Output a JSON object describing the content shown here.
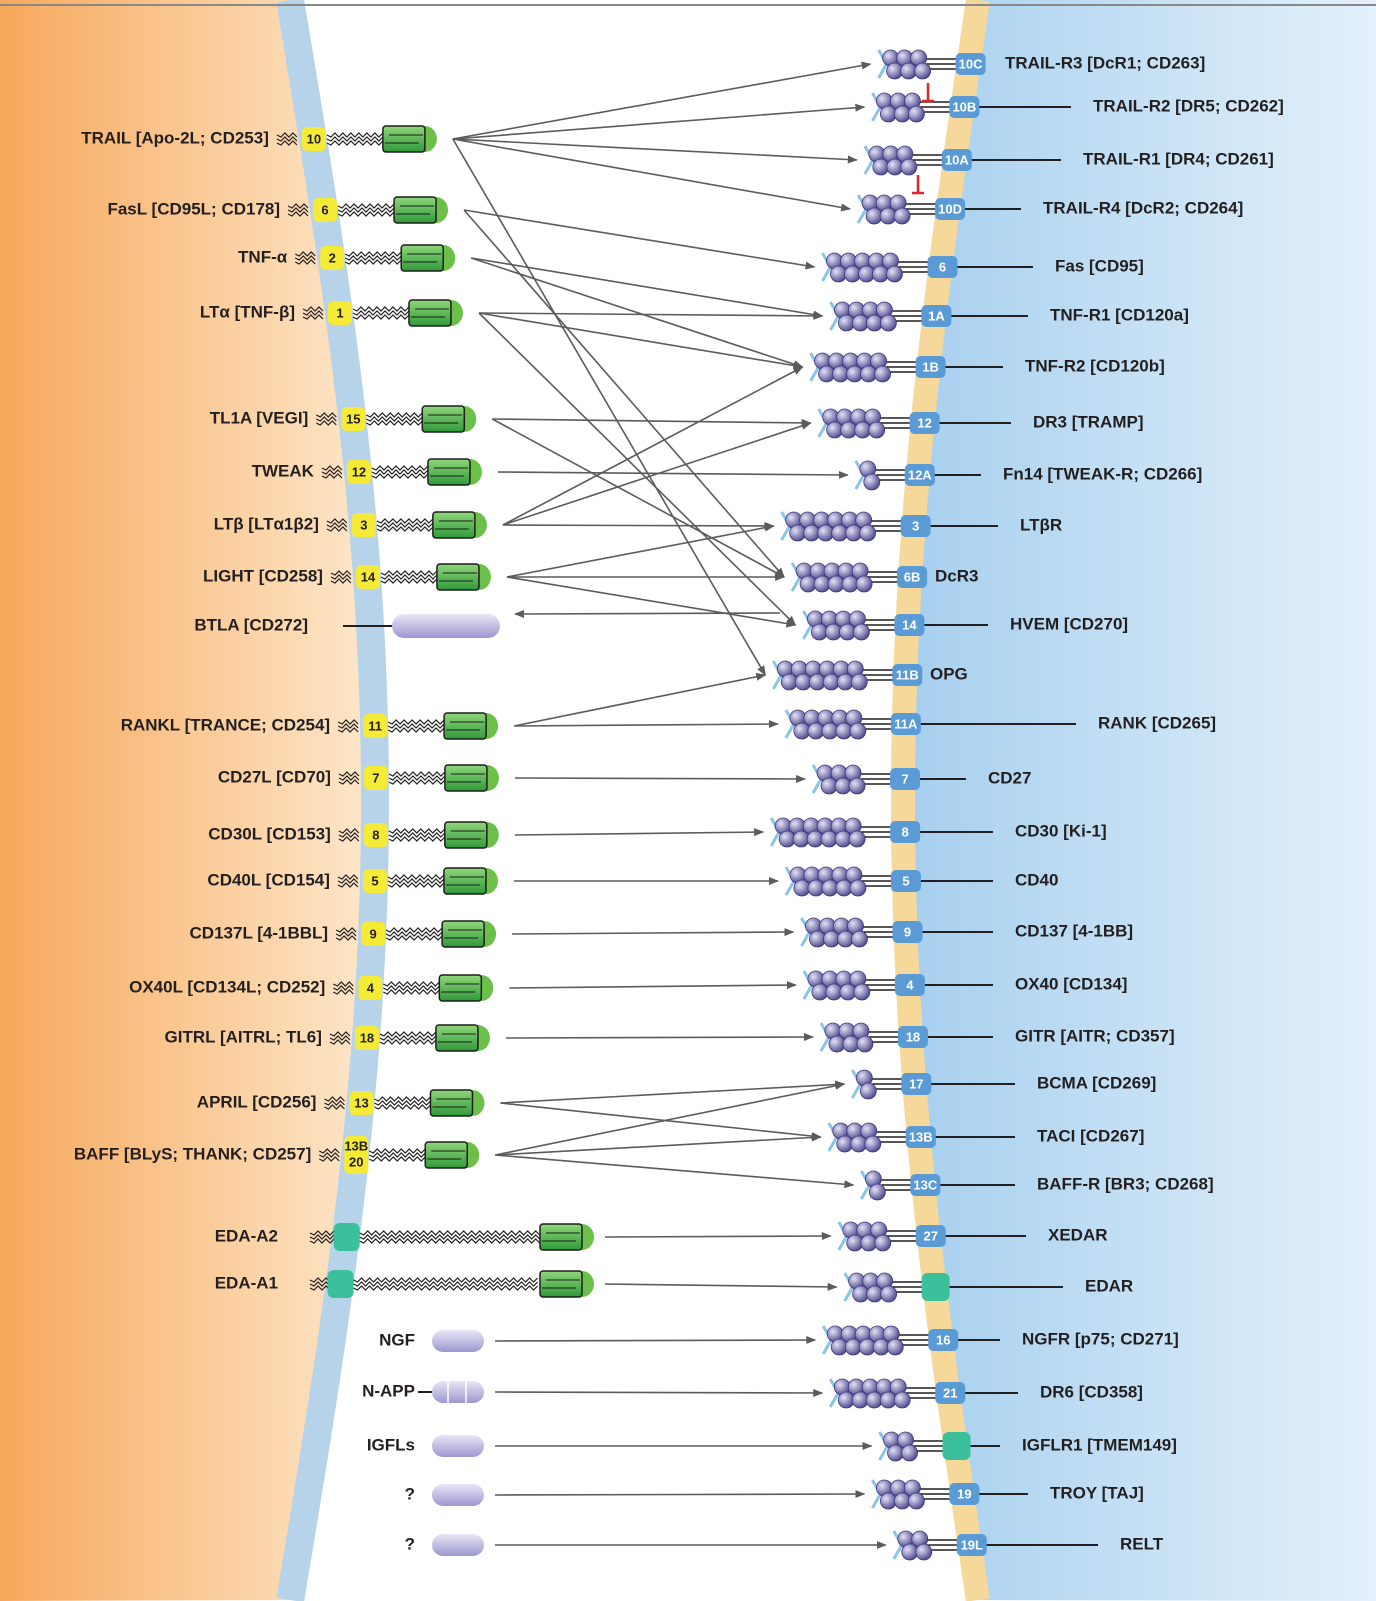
{
  "ligands": [
    {
      "label": "TRAIL [Apo-2L; CD253]",
      "ids": [
        "10"
      ]
    },
    {
      "label": "FasL [CD95L; CD178]",
      "ids": [
        "6"
      ]
    },
    {
      "label": "TNF-α",
      "ids": [
        "2"
      ]
    },
    {
      "label": "LTα [TNF-β]",
      "ids": [
        "1"
      ]
    },
    {
      "label": "TL1A [VEGI]",
      "ids": [
        "15"
      ]
    },
    {
      "label": "TWEAK",
      "ids": [
        "12"
      ]
    },
    {
      "label": "LTβ [LTα1β2]",
      "ids": [
        "3"
      ]
    },
    {
      "label": "LIGHT [CD258]",
      "ids": [
        "14"
      ]
    },
    {
      "label": "BTLA [CD272]",
      "ids": []
    },
    {
      "label": "RANKL [TRANCE; CD254]",
      "ids": [
        "11"
      ]
    },
    {
      "label": "CD27L [CD70]",
      "ids": [
        "7"
      ]
    },
    {
      "label": "CD30L [CD153]",
      "ids": [
        "8"
      ]
    },
    {
      "label": "CD40L [CD154]",
      "ids": [
        "5"
      ]
    },
    {
      "label": "CD137L [4-1BBL]",
      "ids": [
        "9"
      ]
    },
    {
      "label": "OX40L [CD134L; CD252]",
      "ids": [
        "4"
      ]
    },
    {
      "label": "GITRL [AITRL; TL6]",
      "ids": [
        "18"
      ]
    },
    {
      "label": "APRIL [CD256]",
      "ids": [
        "13"
      ]
    },
    {
      "label": "BAFF [BLyS; THANK; CD257]",
      "ids": [
        "13B",
        "20"
      ]
    },
    {
      "label": "EDA-A2",
      "ids": []
    },
    {
      "label": "EDA-A1",
      "ids": []
    },
    {
      "label": "NGF",
      "ids": []
    },
    {
      "label": "N-APP",
      "ids": []
    },
    {
      "label": "IGFLs",
      "ids": []
    },
    {
      "label": "?",
      "ids": []
    },
    {
      "label": "?",
      "ids": []
    }
  ],
  "receptors": [
    {
      "label": "TRAIL-R3 [DcR1; CD263]",
      "id": "10C"
    },
    {
      "label": "TRAIL-R2 [DR5; CD262]",
      "id": "10B"
    },
    {
      "label": "TRAIL-R1 [DR4; CD261]",
      "id": "10A"
    },
    {
      "label": "TRAIL-R4 [DcR2; CD264]",
      "id": "10D"
    },
    {
      "label": "Fas [CD95]",
      "id": "6"
    },
    {
      "label": "TNF-R1 [CD120a]",
      "id": "1A"
    },
    {
      "label": "TNF-R2 [CD120b]",
      "id": "1B"
    },
    {
      "label": "DR3 [TRAMP]",
      "id": "12"
    },
    {
      "label": "Fn14 [TWEAK-R; CD266]",
      "id": "12A"
    },
    {
      "label": "LTβR",
      "id": "3"
    },
    {
      "label": "DcR3",
      "id": "6B"
    },
    {
      "label": "HVEM [CD270]",
      "id": "14"
    },
    {
      "label": "OPG",
      "id": "11B"
    },
    {
      "label": "RANK [CD265]",
      "id": "11A"
    },
    {
      "label": "CD27",
      "id": "7"
    },
    {
      "label": "CD30 [Ki-1]",
      "id": "8"
    },
    {
      "label": "CD40",
      "id": "5"
    },
    {
      "label": "CD137 [4-1BB]",
      "id": "9"
    },
    {
      "label": "OX40 [CD134]",
      "id": "4"
    },
    {
      "label": "GITR [AITR; CD357]",
      "id": "18"
    },
    {
      "label": "BCMA [CD269]",
      "id": "17"
    },
    {
      "label": "TACI [CD267]",
      "id": "13B"
    },
    {
      "label": "BAFF-R [BR3; CD268]",
      "id": "13C"
    },
    {
      "label": "XEDAR",
      "id": "27"
    },
    {
      "label": "EDAR",
      "id": null
    },
    {
      "label": "NGFR [p75; CD271]",
      "id": "16"
    },
    {
      "label": "DR6 [CD358]",
      "id": "21"
    },
    {
      "label": "IGFLR1 [TMEM149]",
      "id": null
    },
    {
      "label": "TROY [TAJ]",
      "id": "19"
    },
    {
      "label": "RELT",
      "id": "19L"
    }
  ]
}
